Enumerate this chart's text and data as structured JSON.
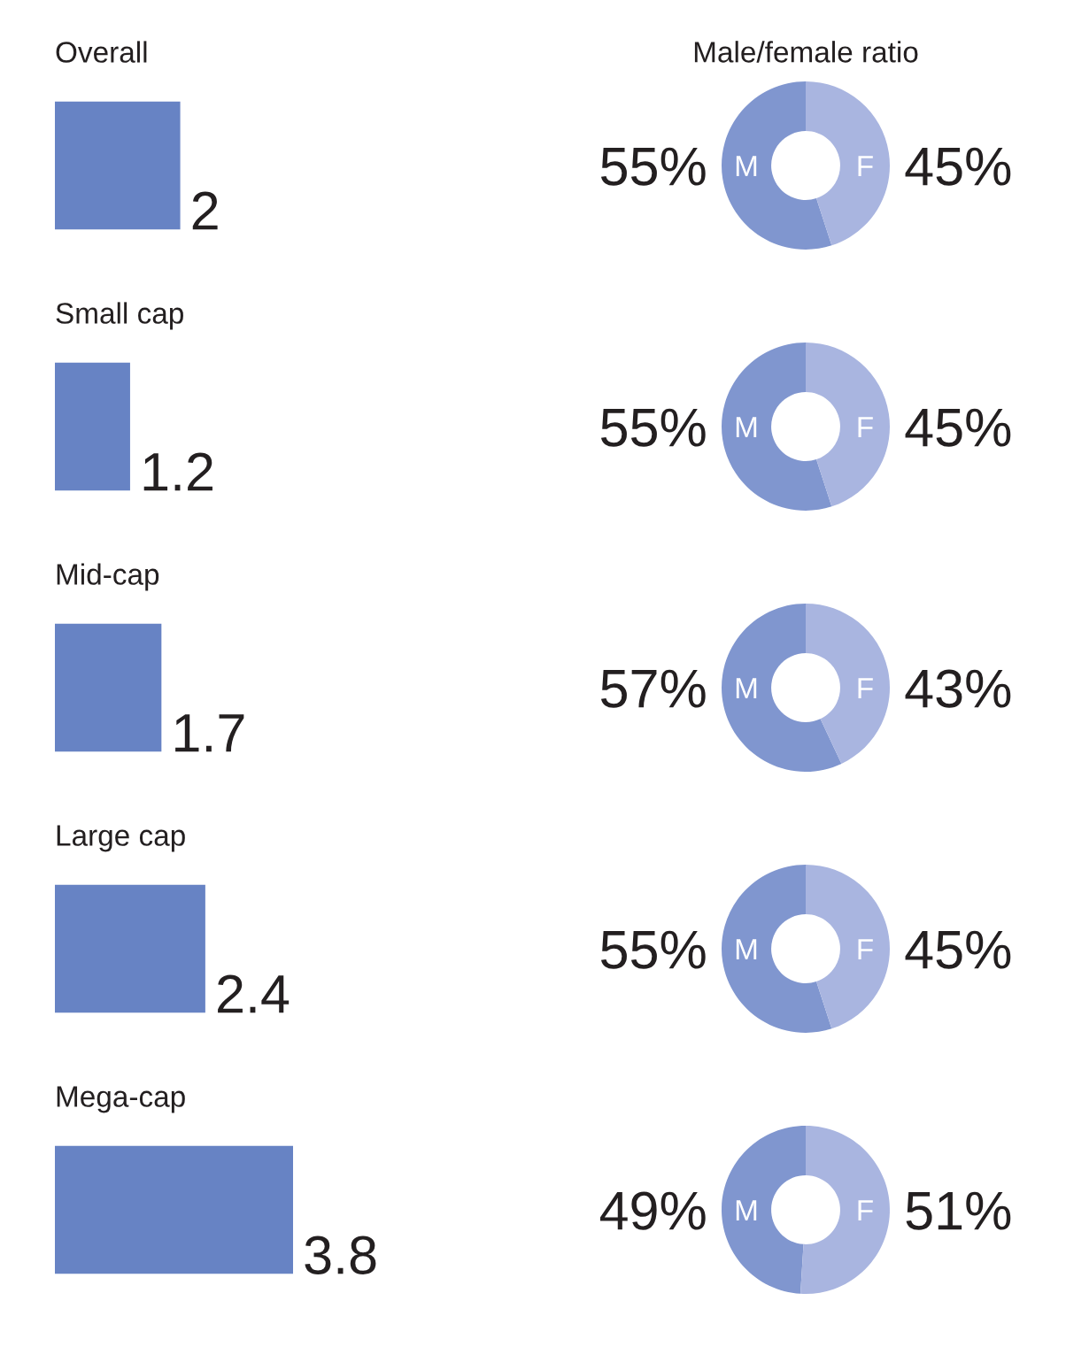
{
  "chart_data": [
    {
      "type": "bar",
      "orientation": "horizontal",
      "categories": [
        "Overall",
        "Small cap",
        "Mid-cap",
        "Large cap",
        "Mega-cap"
      ],
      "values": [
        2,
        1.2,
        1.7,
        2.4,
        3.8
      ],
      "color": "#6783c4",
      "data_labels": true,
      "tick_labels": "y"
    },
    {
      "type": "donut",
      "title": "Male/female ratio",
      "categories": [
        "M",
        "F"
      ],
      "values": [
        55,
        45
      ],
      "colors": [
        "#8096cf",
        "#a9b5e0"
      ],
      "value_labels": [
        "55%",
        "45%"
      ]
    },
    {
      "type": "donut",
      "categories": [
        "M",
        "F"
      ],
      "values": [
        55,
        45
      ],
      "colors": [
        "#8096cf",
        "#a9b5e0"
      ],
      "value_labels": [
        "55%",
        "45%"
      ]
    },
    {
      "type": "donut",
      "categories": [
        "M",
        "F"
      ],
      "values": [
        57,
        43
      ],
      "colors": [
        "#8096cf",
        "#a9b5e0"
      ],
      "value_labels": [
        "57%",
        "43%"
      ]
    },
    {
      "type": "donut",
      "categories": [
        "M",
        "F"
      ],
      "values": [
        55,
        45
      ],
      "colors": [
        "#8096cf",
        "#a9b5e0"
      ],
      "value_labels": [
        "55%",
        "45%"
      ]
    },
    {
      "type": "donut",
      "categories": [
        "M",
        "F"
      ],
      "values": [
        49,
        51
      ],
      "colors": [
        "#8096cf",
        "#a9b5e0"
      ],
      "value_labels": [
        "49%",
        "51%"
      ]
    }
  ]
}
